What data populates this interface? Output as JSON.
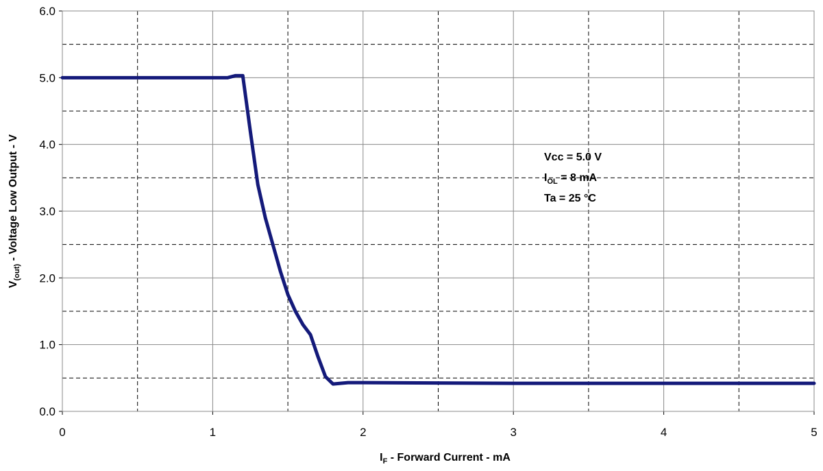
{
  "chart_data": {
    "type": "line",
    "x_label": {
      "main": "I",
      "sub": "F",
      "rest": " - Forward Current - mA"
    },
    "y_label": {
      "main": "V",
      "sub": "(out)",
      "rest": " - Voltage Low Output - V"
    },
    "annotations": [
      {
        "main": "Vcc = 5.0 V"
      },
      {
        "main": "I",
        "sub": "OL",
        "rest": " = 8 mA"
      },
      {
        "main": "Ta = 25 °C"
      }
    ],
    "x": [
      0,
      1.1,
      1.15,
      1.2,
      1.22,
      1.25,
      1.3,
      1.35,
      1.4,
      1.45,
      1.5,
      1.55,
      1.6,
      1.65,
      1.7,
      1.75,
      1.8,
      1.85,
      1.9,
      2,
      3,
      5
    ],
    "series": [
      {
        "name": null,
        "color": "#141a7a",
        "values": [
          5.0,
          5.0,
          5.03,
          5.03,
          4.7,
          4.2,
          3.4,
          2.9,
          2.5,
          2.1,
          1.75,
          1.5,
          1.3,
          1.15,
          0.82,
          0.52,
          0.41,
          0.42,
          0.43,
          0.43,
          0.42,
          0.42
        ]
      }
    ],
    "xlim": [
      0,
      5
    ],
    "ylim": [
      0,
      6
    ],
    "xticks": [
      0,
      1,
      2,
      3,
      4,
      5
    ],
    "yticks": [
      {
        "value": 0,
        "label": "0.0"
      },
      {
        "value": 1,
        "label": "1.0"
      },
      {
        "value": 2,
        "label": "2.0"
      },
      {
        "value": 3,
        "label": "3.0"
      },
      {
        "value": 4,
        "label": "4.0"
      },
      {
        "value": 5,
        "label": "5.0"
      },
      {
        "value": 6,
        "label": "6.0"
      }
    ],
    "xminorticks": [
      0.5,
      1.5,
      2.5,
      3.5,
      4.5
    ],
    "yminorticks": [
      0.5,
      1.5,
      2.5,
      3.5,
      4.5,
      5.5
    ],
    "grid": true
  }
}
